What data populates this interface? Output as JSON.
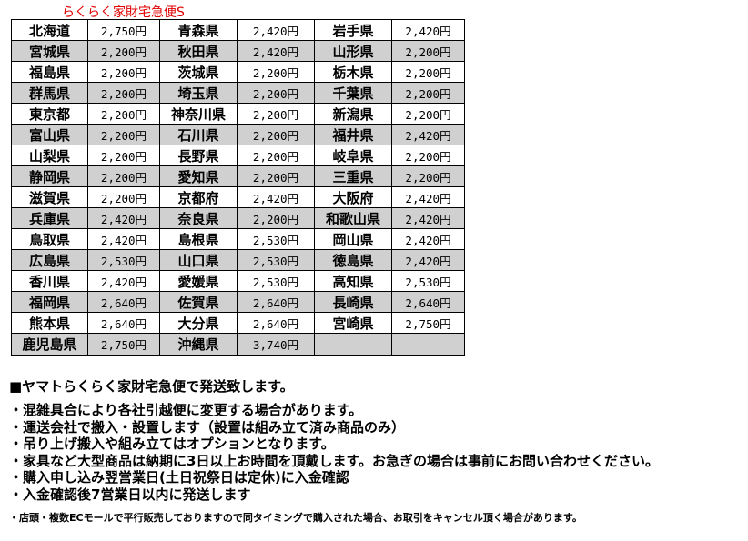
{
  "title": "らくらく家財宅急便S",
  "rows": [
    [
      [
        "北海道",
        "2,750円"
      ],
      [
        "青森県",
        "2,420円"
      ],
      [
        "岩手県",
        "2,420円"
      ]
    ],
    [
      [
        "宮城県",
        "2,200円"
      ],
      [
        "秋田県",
        "2,420円"
      ],
      [
        "山形県",
        "2,200円"
      ]
    ],
    [
      [
        "福島県",
        "2,200円"
      ],
      [
        "茨城県",
        "2,200円"
      ],
      [
        "栃木県",
        "2,200円"
      ]
    ],
    [
      [
        "群馬県",
        "2,200円"
      ],
      [
        "埼玉県",
        "2,200円"
      ],
      [
        "千葉県",
        "2,200円"
      ]
    ],
    [
      [
        "東京都",
        "2,200円"
      ],
      [
        "神奈川県",
        "2,200円"
      ],
      [
        "新潟県",
        "2,200円"
      ]
    ],
    [
      [
        "富山県",
        "2,200円"
      ],
      [
        "石川県",
        "2,200円"
      ],
      [
        "福井県",
        "2,420円"
      ]
    ],
    [
      [
        "山梨県",
        "2,200円"
      ],
      [
        "長野県",
        "2,200円"
      ],
      [
        "岐阜県",
        "2,200円"
      ]
    ],
    [
      [
        "静岡県",
        "2,200円"
      ],
      [
        "愛知県",
        "2,200円"
      ],
      [
        "三重県",
        "2,200円"
      ]
    ],
    [
      [
        "滋賀県",
        "2,200円"
      ],
      [
        "京都府",
        "2,420円"
      ],
      [
        "大阪府",
        "2,420円"
      ]
    ],
    [
      [
        "兵庫県",
        "2,420円"
      ],
      [
        "奈良県",
        "2,200円"
      ],
      [
        "和歌山県",
        "2,420円"
      ]
    ],
    [
      [
        "鳥取県",
        "2,420円"
      ],
      [
        "島根県",
        "2,530円"
      ],
      [
        "岡山県",
        "2,420円"
      ]
    ],
    [
      [
        "広島県",
        "2,530円"
      ],
      [
        "山口県",
        "2,530円"
      ],
      [
        "徳島県",
        "2,420円"
      ]
    ],
    [
      [
        "香川県",
        "2,420円"
      ],
      [
        "愛媛県",
        "2,530円"
      ],
      [
        "高知県",
        "2,530円"
      ]
    ],
    [
      [
        "福岡県",
        "2,640円"
      ],
      [
        "佐賀県",
        "2,640円"
      ],
      [
        "長崎県",
        "2,640円"
      ]
    ],
    [
      [
        "熊本県",
        "2,640円"
      ],
      [
        "大分県",
        "2,640円"
      ],
      [
        "宮崎県",
        "2,750円"
      ]
    ],
    [
      [
        "鹿児島県",
        "2,750円"
      ],
      [
        "沖縄県",
        "3,740円"
      ],
      [
        "",
        ""
      ]
    ]
  ],
  "notes": {
    "heading": "■ヤマトらくらく家財宅急便で発送致します。",
    "lines": [
      "・混雑具合により各社引越便に変更する場合があります。",
      "・運送会社で搬入・設置します（設置は組み立て済み商品のみ）",
      "・吊り上げ搬入や組み立てはオプションとなります。",
      "・家具など大型商品は納期に3日以上お時間を頂戴します。お急ぎの場合は事前にお問い合わせください。",
      "・購入申し込み翌営業日(土日祝祭日は定休)に入金確認",
      "・入金確認後7営業日以内に発送します"
    ],
    "small": "・店頭・複数ECモールで平行販売しておりますので同タイミングで購入された場合、お取引をキャンセル頂く場合があります。"
  }
}
